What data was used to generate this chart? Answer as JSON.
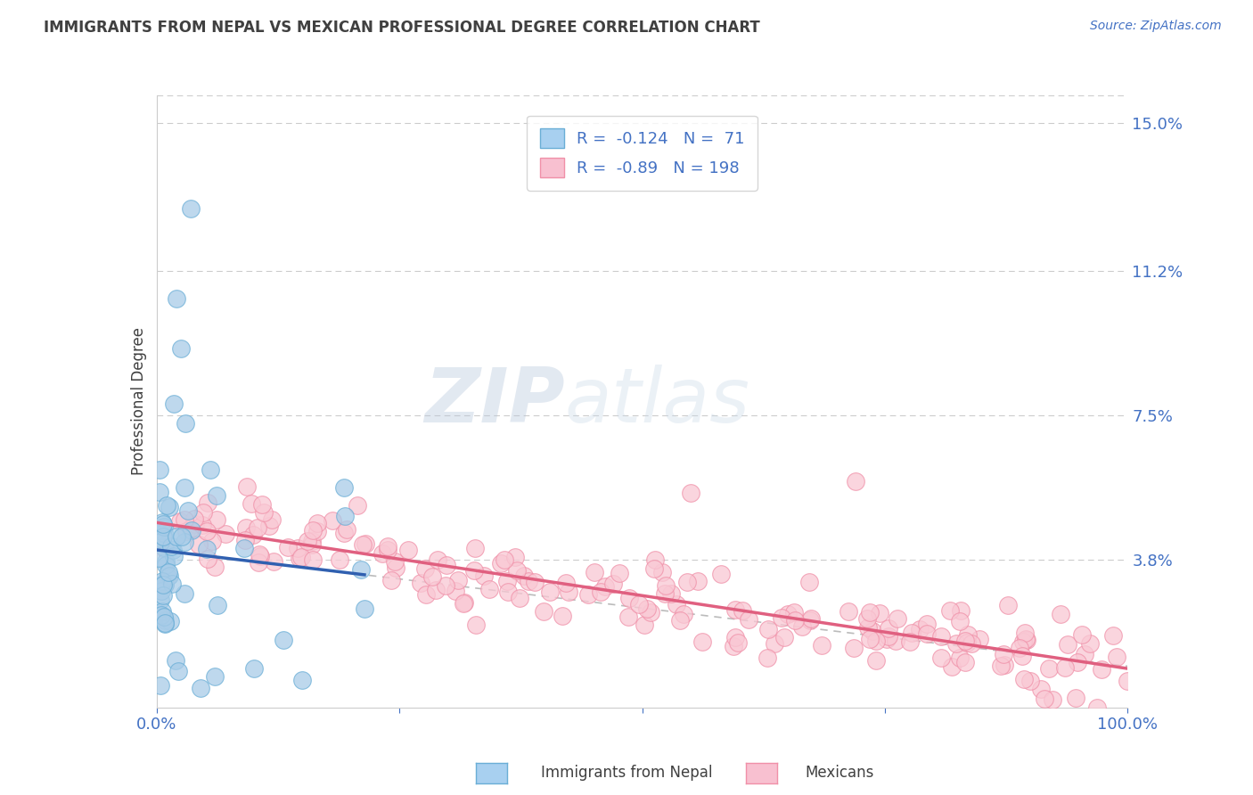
{
  "title": "IMMIGRANTS FROM NEPAL VS MEXICAN PROFESSIONAL DEGREE CORRELATION CHART",
  "source_text": "Source: ZipAtlas.com",
  "ylabel": "Professional Degree",
  "watermark_zip": "ZIP",
  "watermark_atlas": "atlas",
  "right_yticks": [
    0.0,
    0.038,
    0.075,
    0.112,
    0.15
  ],
  "right_yticklabels": [
    "",
    "3.8%",
    "7.5%",
    "11.2%",
    "15.0%"
  ],
  "xlim": [
    0.0,
    1.0
  ],
  "ylim": [
    0.0,
    0.157
  ],
  "nepal_R": -0.124,
  "nepal_N": 71,
  "mexican_R": -0.89,
  "mexican_N": 198,
  "nepal_color": "#a8cce8",
  "nepal_edge_color": "#6aaed6",
  "mexican_color": "#f9c8d4",
  "mexican_edge_color": "#f090a8",
  "trend_line_nepal_color": "#3060b0",
  "trend_line_mexican_color": "#e06080",
  "trend_line_dashed_color": "#bbbbbb",
  "legend_border_color": "#cccccc",
  "legend_text_dark": "#333333",
  "legend_text_blue": "#4472c4",
  "axis_label_color": "#4472c4",
  "title_color": "#404040",
  "grid_color": "#cccccc",
  "background_color": "#ffffff",
  "watermark_color": "#c8d4e8",
  "legend_nepal_fill": "#a8d0f0",
  "legend_mexican_fill": "#f8c0d0"
}
